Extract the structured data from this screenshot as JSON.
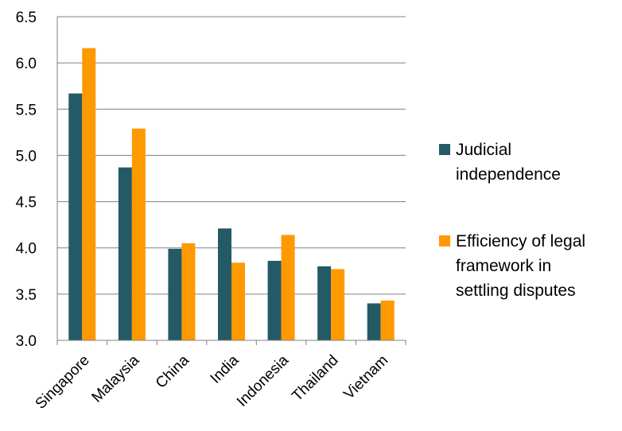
{
  "chart_data": {
    "type": "bar",
    "categories": [
      "Singapore",
      "Malaysia",
      "China",
      "India",
      "Indonesia",
      "Thailand",
      "Vietnam"
    ],
    "series": [
      {
        "name": "Judicial independence",
        "legend_lines": [
          "Judicial",
          "independence"
        ],
        "color": "#245a66",
        "values": [
          5.67,
          4.87,
          3.99,
          4.21,
          3.86,
          3.8,
          3.4
        ]
      },
      {
        "name": "Efficiency of legal framework in settling disputes",
        "legend_lines": [
          "Efficiency of legal",
          "framework in",
          "settling disputes"
        ],
        "color": "#ff9900",
        "values": [
          6.16,
          5.29,
          4.05,
          3.84,
          4.14,
          3.77,
          3.43
        ]
      }
    ],
    "yticks": [
      "3.0",
      "3.5",
      "4.0",
      "4.5",
      "5.0",
      "5.5",
      "6.0",
      "6.5"
    ],
    "ylim": [
      3.0,
      6.5
    ],
    "grid": true,
    "legend_position": "right",
    "title": "",
    "xlabel": "",
    "ylabel": "",
    "gridline_color": "#808080"
  }
}
